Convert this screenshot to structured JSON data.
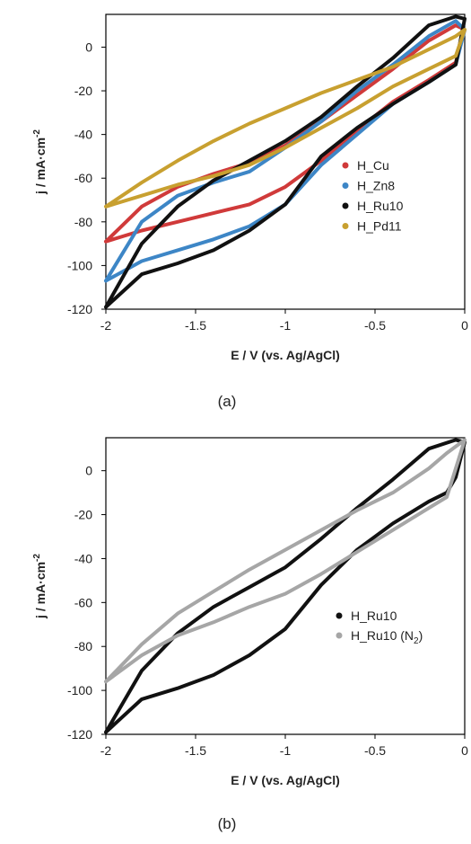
{
  "chart_data": [
    {
      "type": "line",
      "panel_label": "(a)",
      "xlabel": "E / V (vs. Ag/AgCl)",
      "ylabel_base": "j / mA·cm",
      "ylabel_sup": "-2",
      "xlim": [
        -2,
        0
      ],
      "ylim": [
        -120,
        15
      ],
      "x_ticks": [
        -2,
        -1.5,
        -1,
        -0.5,
        0
      ],
      "x_tick_labels": [
        "-2",
        "-1.5",
        "-1",
        "-0.5",
        "0"
      ],
      "y_ticks": [
        0,
        -20,
        -40,
        -60,
        -80,
        -100,
        -120
      ],
      "y_tick_labels": [
        "0",
        "-20",
        "-40",
        "-60",
        "-80",
        "-100",
        "-120"
      ],
      "grid": false,
      "legend_position": "right",
      "series": [
        {
          "name": "H_Cu",
          "color": "#d03a3a",
          "x": [
            -2.0,
            -1.8,
            -1.6,
            -1.4,
            -1.2,
            -1.0,
            -0.8,
            -0.6,
            -0.4,
            -0.2,
            -0.05,
            0.0,
            -0.05,
            -0.2,
            -0.4,
            -0.6,
            -0.8,
            -1.0,
            -1.2,
            -1.4,
            -1.6,
            -1.8,
            -2.0
          ],
          "y": [
            -89,
            -84,
            -80,
            -76,
            -72,
            -64,
            -52,
            -38,
            -25,
            -15,
            -7,
            8,
            10,
            3,
            -10,
            -22,
            -34,
            -45,
            -53,
            -58,
            -64,
            -73,
            -89
          ]
        },
        {
          "name": "H_Zn8",
          "color": "#3d86c6",
          "x": [
            -2.0,
            -1.8,
            -1.6,
            -1.4,
            -1.2,
            -1.0,
            -0.8,
            -0.6,
            -0.4,
            -0.2,
            -0.05,
            0.0,
            -0.05,
            -0.2,
            -0.4,
            -0.6,
            -0.8,
            -1.0,
            -1.2,
            -1.4,
            -1.6,
            -1.8,
            -2.0
          ],
          "y": [
            -107,
            -98,
            -93,
            -88,
            -82,
            -72,
            -54,
            -40,
            -26,
            -16,
            -8,
            8,
            12,
            5,
            -8,
            -20,
            -34,
            -46,
            -57,
            -62,
            -68,
            -80,
            -107
          ]
        },
        {
          "name": "H_Ru10",
          "color": "#111111",
          "x": [
            -2.0,
            -1.8,
            -1.6,
            -1.4,
            -1.2,
            -1.0,
            -0.8,
            -0.6,
            -0.4,
            -0.2,
            -0.05,
            0.0,
            -0.05,
            -0.2,
            -0.4,
            -0.6,
            -0.8,
            -1.0,
            -1.2,
            -1.4,
            -1.6,
            -1.8,
            -2.0
          ],
          "y": [
            -119,
            -104,
            -99,
            -93,
            -84,
            -72,
            -50,
            -37,
            -26,
            -16,
            -8,
            13,
            14,
            10,
            -5,
            -18,
            -32,
            -43,
            -52,
            -61,
            -73,
            -90,
            -119
          ]
        },
        {
          "name": "H_Pd11",
          "color": "#c8a030",
          "x": [
            -2.0,
            -1.8,
            -1.6,
            -1.4,
            -1.2,
            -1.0,
            -0.8,
            -0.6,
            -0.4,
            -0.2,
            -0.05,
            0.0,
            -0.05,
            -0.2,
            -0.4,
            -0.6,
            -0.8,
            -1.0,
            -1.2,
            -1.4,
            -1.6,
            -1.8,
            -2.0
          ],
          "y": [
            -73,
            -68,
            -63,
            -59,
            -54,
            -46,
            -37,
            -28,
            -18,
            -10,
            -4,
            8,
            5,
            -1,
            -9,
            -15,
            -21,
            -28,
            -35,
            -43,
            -52,
            -62,
            -73
          ]
        }
      ]
    },
    {
      "type": "line",
      "panel_label": "(b)",
      "xlabel": "E / V (vs. Ag/AgCl)",
      "ylabel_base": "j / mA·cm",
      "ylabel_sup": "-2",
      "xlim": [
        -2,
        0
      ],
      "ylim": [
        -120,
        15
      ],
      "x_ticks": [
        -2,
        -1.5,
        -1,
        -0.5,
        0
      ],
      "x_tick_labels": [
        "-2",
        "-1.5",
        "-1",
        "-0.5",
        "0"
      ],
      "y_ticks": [
        0,
        -20,
        -40,
        -60,
        -80,
        -100,
        -120
      ],
      "y_tick_labels": [
        "0",
        "-20",
        "-40",
        "-60",
        "-80",
        "-100",
        "-120"
      ],
      "grid": false,
      "legend_position": "right",
      "series": [
        {
          "name": "H_Ru10",
          "color": "#111111",
          "x": [
            -2.0,
            -1.8,
            -1.6,
            -1.4,
            -1.2,
            -1.0,
            -0.8,
            -0.6,
            -0.4,
            -0.2,
            -0.1,
            -0.05,
            0.0,
            -0.05,
            -0.2,
            -0.4,
            -0.6,
            -0.8,
            -1.0,
            -1.2,
            -1.4,
            -1.6,
            -1.8,
            -2.0
          ],
          "y": [
            -119,
            -104,
            -99,
            -93,
            -84,
            -72,
            -52,
            -36,
            -24,
            -14,
            -10,
            -3,
            13,
            14,
            10,
            -4,
            -17,
            -31,
            -44,
            -53,
            -62,
            -74,
            -91,
            -119
          ]
        },
        {
          "name": "H_Ru10 (N₂)",
          "name_base": "H_Ru10 (N",
          "name_sub": "2",
          "name_end": ")",
          "color": "#a6a6a6",
          "x": [
            -2.0,
            -1.8,
            -1.6,
            -1.4,
            -1.2,
            -1.0,
            -0.8,
            -0.6,
            -0.4,
            -0.2,
            -0.1,
            0.0,
            -0.1,
            -0.2,
            -0.4,
            -0.6,
            -0.8,
            -1.0,
            -1.2,
            -1.4,
            -1.6,
            -1.8,
            -2.0
          ],
          "y": [
            -96,
            -84,
            -75,
            -69,
            -62,
            -56,
            -47,
            -37,
            -27,
            -17,
            -12,
            14,
            8,
            1,
            -10,
            -18,
            -27,
            -36,
            -45,
            -55,
            -65,
            -79,
            -96
          ]
        }
      ]
    }
  ]
}
